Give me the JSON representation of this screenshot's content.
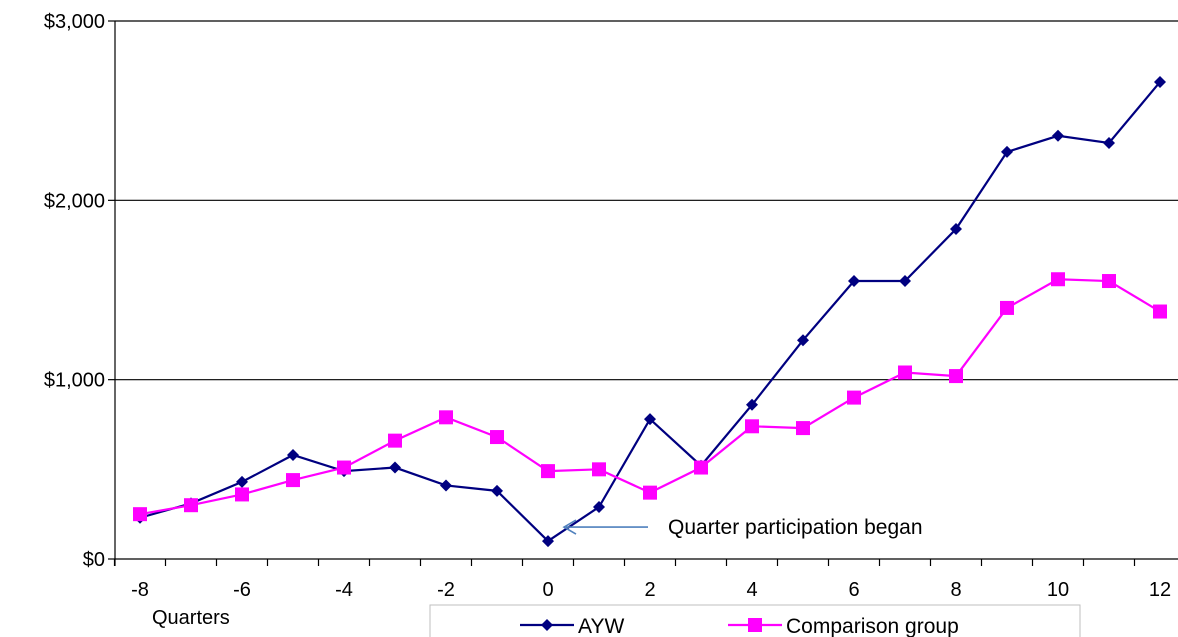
{
  "chart_data": {
    "type": "line",
    "x": [
      -8,
      -7,
      -6,
      -5,
      -4,
      -3,
      -2,
      -1,
      0,
      1,
      2,
      3,
      4,
      5,
      6,
      7,
      8,
      9,
      10,
      11,
      12
    ],
    "x_tick_labels": [
      "-8",
      "-6",
      "-4",
      "-2",
      "0",
      "2",
      "4",
      "6",
      "8",
      "10",
      "12"
    ],
    "xlim": [
      -8,
      12
    ],
    "xlabel": "Quarters",
    "ylabel": "",
    "ylim": [
      0,
      3000
    ],
    "y_tick_labels": [
      "$0",
      "$1,000",
      "$2,000",
      "$3,000"
    ],
    "y_ticks": [
      0,
      1000,
      2000,
      3000
    ],
    "grid": "horizontal",
    "legend_position": "bottom",
    "series": [
      {
        "name": "AYW",
        "color": "#000080",
        "marker": "diamond",
        "values": [
          230,
          310,
          430,
          580,
          490,
          510,
          410,
          380,
          100,
          290,
          780,
          520,
          860,
          1220,
          1550,
          1550,
          1840,
          2270,
          2360,
          2320,
          2660
        ]
      },
      {
        "name": "Comparison group",
        "color": "#ff00ff",
        "marker": "square",
        "values": [
          250,
          300,
          360,
          440,
          510,
          660,
          790,
          680,
          490,
          500,
          370,
          510,
          740,
          730,
          900,
          1040,
          1020,
          1400,
          1560,
          1550,
          1380
        ]
      }
    ],
    "annotations": [
      {
        "text": "Quarter participation began",
        "x": 0,
        "y": 100,
        "color": "#4f81bd"
      }
    ]
  }
}
